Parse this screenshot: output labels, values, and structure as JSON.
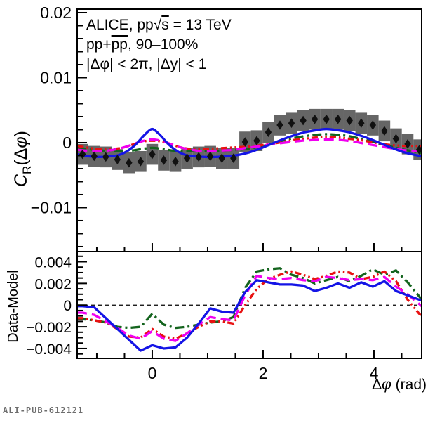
{
  "annotation": {
    "line1_pre": "ALICE, pp",
    "line1_sqrt": "√",
    "line1_s": "s",
    "line1_post": " = 13 TeV",
    "line2_pre": "pp+",
    "line2_bar": "pp",
    "line2_post": ", 90–100%",
    "line3": "|Δφ| < 2π, |Δy| < 1"
  },
  "axes": {
    "top_ylabel_c": "C",
    "top_ylabel_sub": "R",
    "top_ylabel_open": "(Δ",
    "top_ylabel_phi": "φ",
    "top_ylabel_close": ")",
    "bottom_ylabel": "Data-Model",
    "xlabel_delta": "Δ",
    "xlabel_phi": "φ",
    "xlabel_unit": " (rad)"
  },
  "watermark": "ALI-PUB-612121",
  "colors": {
    "frame": "#000000",
    "sys_box": "#666666",
    "data_marker": "#111111",
    "model_blue": "#1414e6",
    "model_magenta": "#f000f0",
    "model_red": "#e81111",
    "model_green": "#14641e"
  },
  "chart_data": {
    "type": "line",
    "x_axis": {
      "label": "Δφ (rad)",
      "lim": [
        -1.354,
        4.861
      ],
      "major_ticks": [
        0,
        2,
        4
      ],
      "major_tick_labels": [
        "0",
        "2",
        "4"
      ],
      "minor_step": 0.5
    },
    "top_panel": {
      "y_axis": {
        "label": "C_R(Δφ)",
        "lim": [
          -0.01676,
          0.02054
        ],
        "major_ticks": [
          0.02,
          0.01,
          0,
          -0.01
        ],
        "major_tick_labels": [
          "0.02",
          "0.01",
          "0",
          "−0.01"
        ],
        "minor_step": 0.002
      },
      "data_points": {
        "marker": "diamond",
        "color": "#111111",
        "sys_box_color": "#666666",
        "sys_box_half_height": 0.0016,
        "bin_width": 0.2094,
        "x": [
          -1.257,
          -1.047,
          -0.838,
          -0.628,
          -0.419,
          -0.209,
          0,
          0.209,
          0.419,
          0.628,
          0.838,
          1.047,
          1.257,
          1.466,
          1.676,
          1.885,
          2.094,
          2.304,
          2.513,
          2.723,
          2.932,
          3.142,
          3.351,
          3.56,
          3.77,
          3.979,
          4.189,
          4.398,
          4.608,
          4.817
        ],
        "y": [
          -0.0018,
          -0.0021,
          -0.0022,
          -0.0026,
          -0.0031,
          -0.0029,
          -0.0018,
          -0.0027,
          -0.0029,
          -0.0024,
          -0.0022,
          -0.0021,
          -0.0024,
          -0.0024,
          0.0001,
          0.0003,
          0.0016,
          0.0027,
          0.003,
          0.0034,
          0.0036,
          0.0036,
          0.0036,
          0.0034,
          0.003,
          0.0027,
          0.0018,
          0.0006,
          -0.0002,
          -0.0011
        ]
      },
      "series": [
        {
          "name": "model-green-dashdot",
          "color": "#14641e",
          "line_style": "dashdot",
          "x": [
            -1.35,
            -1.15,
            -0.95,
            -0.75,
            -0.55,
            -0.35,
            -0.2,
            0,
            0.2,
            0.35,
            0.55,
            0.75,
            0.95,
            1.15,
            1.35,
            1.55,
            1.75,
            1.95,
            2.15,
            2.35,
            2.55,
            2.75,
            2.95,
            3.14,
            3.35,
            3.55,
            3.75,
            3.95,
            4.15,
            4.35,
            4.55,
            4.75,
            4.86
          ],
          "y": [
            -0.0008,
            -0.001,
            -0.0012,
            -0.0013,
            -0.0013,
            -0.0012,
            -0.001,
            -0.0008,
            -0.001,
            -0.0012,
            -0.0013,
            -0.0013,
            -0.0013,
            -0.0013,
            -0.0012,
            -0.0011,
            -0.0009,
            -0.0006,
            -0.0002,
            0.0003,
            0.0007,
            0.001,
            0.0012,
            0.0013,
            0.0012,
            0.001,
            0.0006,
            0.0002,
            -0.0003,
            -0.0007,
            -0.0011,
            -0.0014,
            -0.0016
          ]
        },
        {
          "name": "model-red-dashdotdot",
          "color": "#e81111",
          "line_style": "dashdotdot",
          "x": [
            -1.35,
            -1.15,
            -0.95,
            -0.75,
            -0.55,
            -0.35,
            -0.15,
            0,
            0.15,
            0.35,
            0.55,
            0.75,
            0.95,
            1.15,
            1.35,
            1.55,
            1.75,
            1.95,
            2.15,
            2.35,
            2.55,
            2.75,
            2.95,
            3.14,
            3.35,
            3.55,
            3.75,
            3.95,
            4.15,
            4.35,
            4.55,
            4.75,
            4.86
          ],
          "y": [
            -0.0005,
            -0.0008,
            -0.001,
            -0.001,
            -0.0008,
            -0.0003,
            0.0002,
            0.0003,
            0.0002,
            -0.0003,
            -0.0008,
            -0.001,
            -0.001,
            -0.0009,
            -0.0008,
            -0.0007,
            -0.0006,
            -0.0004,
            -0.0002,
            0.0001,
            0.0004,
            0.0006,
            0.0008,
            0.0009,
            0.0008,
            0.0006,
            0.0004,
            0.0001,
            -0.0002,
            -0.0004,
            -0.0005,
            -0.0005,
            -0.0005
          ]
        },
        {
          "name": "model-magenta-dashed",
          "color": "#f000f0",
          "line_style": "dashed",
          "x": [
            -1.35,
            -1.1,
            -0.9,
            -0.7,
            -0.5,
            -0.3,
            -0.15,
            0,
            0.15,
            0.3,
            0.5,
            0.7,
            0.9,
            1.1,
            1.3,
            1.5,
            1.7,
            1.9,
            2.1,
            2.3,
            2.5,
            2.7,
            2.9,
            3.14,
            3.4,
            3.6,
            3.8,
            4,
            4.2,
            4.4,
            4.6,
            4.86
          ],
          "y": [
            -0.0011,
            -0.0013,
            -0.0013,
            -0.0011,
            -0.0007,
            -0.0001,
            0.0003,
            0.0005,
            0.0003,
            -0.0001,
            -0.0007,
            -0.0011,
            -0.0013,
            -0.0013,
            -0.0012,
            -0.0011,
            -0.0008,
            -0.0006,
            -0.0003,
            -0.0001,
            0.0001,
            0.0003,
            0.0004,
            0.0005,
            0.0004,
            0.0002,
            -0.0001,
            -0.0004,
            -0.0007,
            -0.001,
            -0.0012,
            -0.0013
          ]
        },
        {
          "name": "model-blue-solid",
          "color": "#1414e6",
          "line_style": "solid",
          "x": [
            -1.35,
            -1.15,
            -0.95,
            -0.75,
            -0.6,
            -0.45,
            -0.3,
            -0.15,
            -0.05,
            0,
            0.05,
            0.15,
            0.3,
            0.45,
            0.6,
            0.75,
            0.95,
            1.15,
            1.35,
            1.55,
            1.75,
            1.95,
            2.15,
            2.35,
            2.55,
            2.75,
            2.95,
            3.14,
            3.35,
            3.55,
            3.75,
            3.95,
            4.15,
            4.35,
            4.55,
            4.75,
            4.86
          ],
          "y": [
            -0.0018,
            -0.0021,
            -0.0022,
            -0.0021,
            -0.0019,
            -0.0013,
            -0.0003,
            0.0011,
            0.0019,
            0.0021,
            0.0019,
            0.0011,
            -0.0003,
            -0.0013,
            -0.0019,
            -0.0021,
            -0.0022,
            -0.0022,
            -0.0021,
            -0.0019,
            -0.0015,
            -0.0009,
            -0.0002,
            0.0005,
            0.0011,
            0.0016,
            0.0019,
            0.0021,
            0.0019,
            0.0016,
            0.0011,
            0.0005,
            -0.0002,
            -0.0009,
            -0.0015,
            -0.0019,
            -0.0021
          ]
        }
      ]
    },
    "bottom_panel": {
      "y_axis": {
        "label": "Data-Model",
        "lim": [
          -0.00491,
          0.00494
        ],
        "major_ticks": [
          0.004,
          0.002,
          0,
          -0.002,
          -0.004
        ],
        "major_tick_labels": [
          "0.004",
          "0.002",
          "0",
          "−0.002",
          "−0.004"
        ],
        "minor_step": 0.0005
      },
      "zero_line": true,
      "series": [
        {
          "name": "model-green-dashdot",
          "color": "#14641e",
          "line_style": "dashdot",
          "x": [
            -1.354,
            -1.257,
            -1.047,
            -0.838,
            -0.628,
            -0.419,
            -0.209,
            0,
            0.209,
            0.419,
            0.628,
            0.838,
            1.047,
            1.257,
            1.466,
            1.676,
            1.885,
            2.094,
            2.304,
            2.513,
            2.723,
            2.932,
            3.142,
            3.351,
            3.56,
            3.77,
            3.979,
            4.189,
            4.398,
            4.608,
            4.817,
            4.861
          ],
          "y": [
            -0.0013,
            -0.0013,
            -0.0014,
            -0.0016,
            -0.002,
            -0.0021,
            -0.002,
            -0.0008,
            -0.0018,
            -0.0021,
            -0.002,
            -0.0018,
            -0.0016,
            -0.0015,
            -0.0011,
            0.0016,
            0.0031,
            0.0033,
            0.0034,
            0.0028,
            0.0025,
            0.002,
            0.0023,
            0.0026,
            0.0022,
            0.0027,
            0.0033,
            0.0028,
            0.0032,
            0.0021,
            0.0008,
            0.0005
          ]
        },
        {
          "name": "model-red-dashdotdot",
          "color": "#e81111",
          "line_style": "dashdotdot",
          "x": [
            -1.354,
            -1.257,
            -1.047,
            -0.838,
            -0.628,
            -0.419,
            -0.209,
            0,
            0.209,
            0.419,
            0.628,
            0.838,
            1.047,
            1.257,
            1.466,
            1.676,
            1.885,
            2.094,
            2.304,
            2.513,
            2.723,
            2.932,
            3.142,
            3.351,
            3.56,
            3.77,
            3.979,
            4.189,
            4.398,
            4.608,
            4.817,
            4.861
          ],
          "y": [
            -0.0012,
            -0.0012,
            -0.0014,
            -0.0016,
            -0.0022,
            -0.0029,
            -0.003,
            -0.0022,
            -0.0029,
            -0.0031,
            -0.0026,
            -0.002,
            -0.0015,
            -0.0015,
            -0.0017,
            0,
            0.0015,
            0.0024,
            0.0028,
            0.0031,
            0.0028,
            0.0024,
            0.0027,
            0.0031,
            0.003,
            0.0024,
            0.0026,
            0.0031,
            0.0022,
            0.0005,
            -0.0008,
            -0.001
          ]
        },
        {
          "name": "model-magenta-dashed",
          "color": "#f000f0",
          "line_style": "dashed",
          "x": [
            -1.354,
            -1.257,
            -1.047,
            -0.838,
            -0.628,
            -0.419,
            -0.209,
            0,
            0.209,
            0.419,
            0.628,
            0.838,
            1.047,
            1.257,
            1.466,
            1.676,
            1.885,
            2.094,
            2.304,
            2.513,
            2.723,
            2.932,
            3.142,
            3.351,
            3.56,
            3.77,
            3.979,
            4.189,
            4.398,
            4.608,
            4.817,
            4.861
          ],
          "y": [
            -0.0007,
            -0.0007,
            -0.0009,
            -0.0015,
            -0.0021,
            -0.0028,
            -0.0031,
            -0.0024,
            -0.0031,
            -0.0033,
            -0.0026,
            -0.0018,
            -0.0011,
            -0.0013,
            -0.0014,
            0.0009,
            0.0027,
            0.0025,
            0.0024,
            0.0025,
            0.0023,
            0.0022,
            0.0026,
            0.0025,
            0.0023,
            0.0024,
            0.0023,
            0.0026,
            0.0017,
            0.001,
            0.0001,
            -0.0001
          ]
        },
        {
          "name": "model-blue-solid",
          "color": "#1414e6",
          "line_style": "solid",
          "x": [
            -1.354,
            -1.257,
            -1.047,
            -0.838,
            -0.628,
            -0.419,
            -0.209,
            0,
            0.209,
            0.419,
            0.628,
            0.838,
            1.047,
            1.257,
            1.466,
            1.676,
            1.885,
            2.094,
            2.304,
            2.513,
            2.723,
            2.932,
            3.142,
            3.351,
            3.56,
            3.77,
            3.979,
            4.189,
            4.398,
            4.608,
            4.817,
            4.861
          ],
          "y": [
            -0.0001,
            -0.0001,
            -0.0002,
            -0.0012,
            -0.0022,
            -0.0032,
            -0.0042,
            -0.0037,
            -0.004,
            -0.0039,
            -0.003,
            -0.0017,
            -0.0003,
            -0.0006,
            -0.0007,
            0.0012,
            0.0023,
            0.0021,
            0.0019,
            0.0019,
            0.0018,
            0.0013,
            0.0016,
            0.002,
            0.0016,
            0.0021,
            0.0017,
            0.0022,
            0.0013,
            0.0009,
            0.0005,
            0.0005
          ]
        }
      ]
    }
  }
}
